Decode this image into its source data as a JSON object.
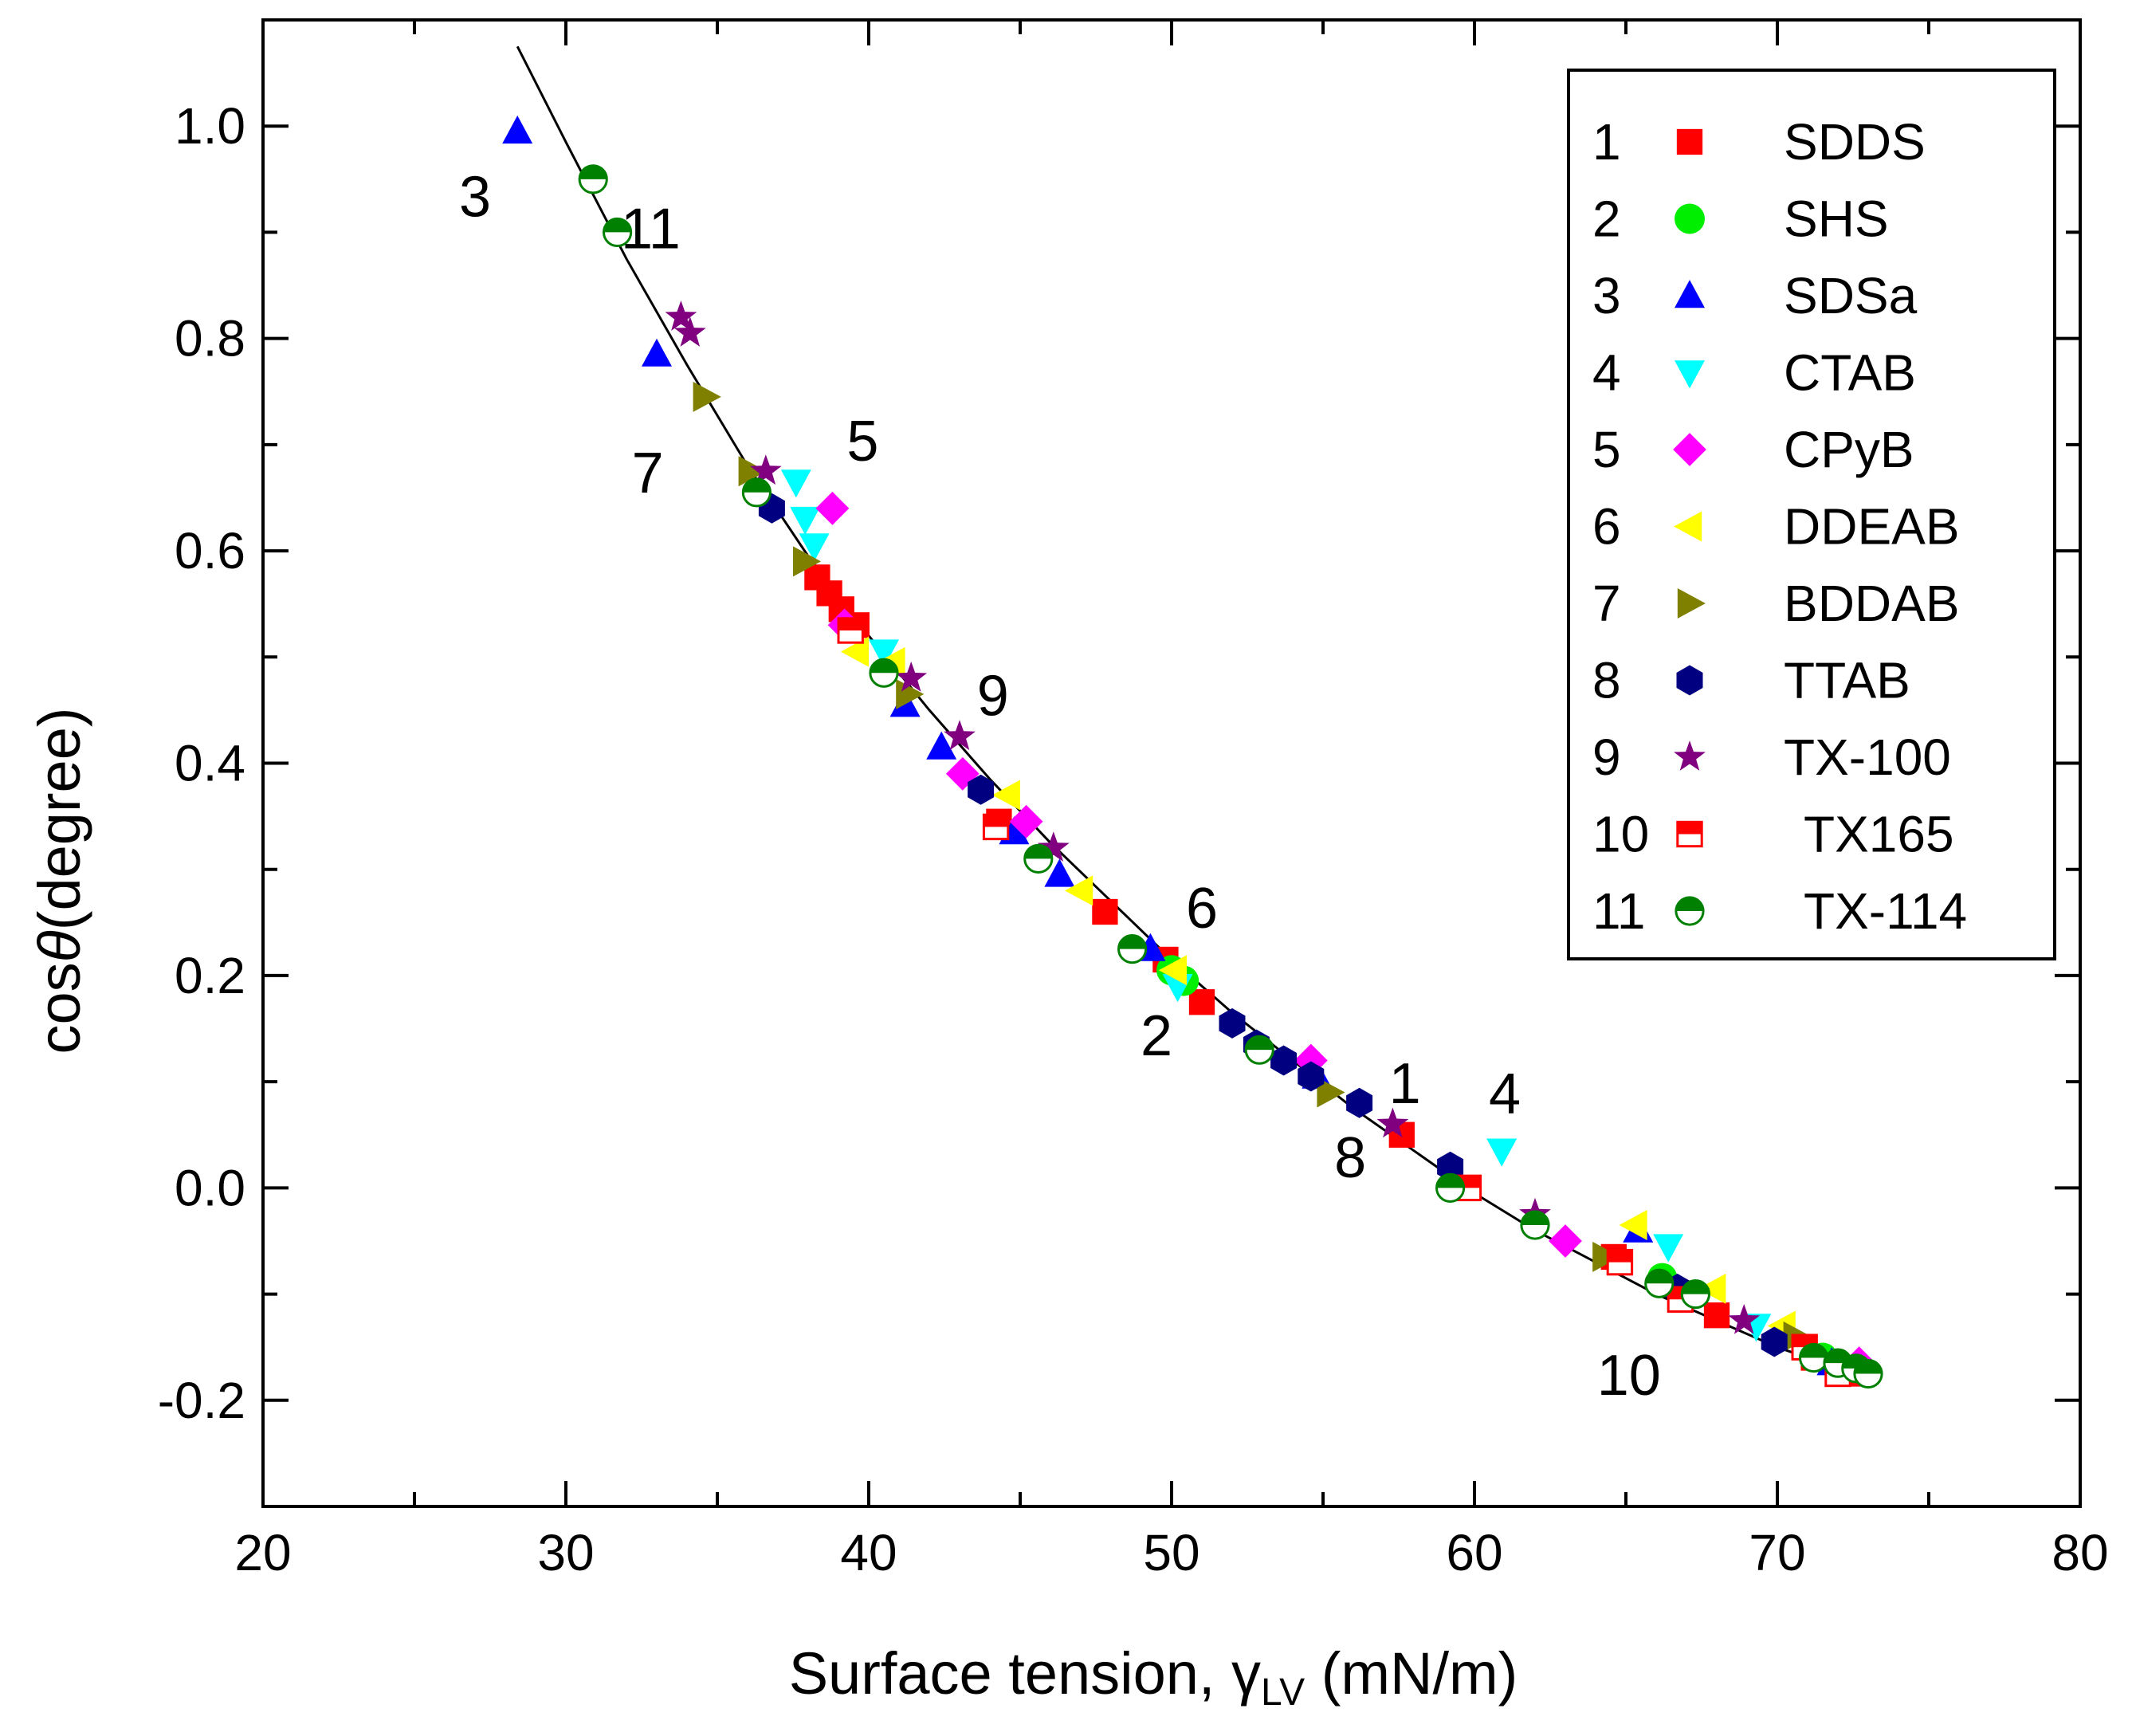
{
  "chart_data": {
    "type": "scatter",
    "title": "",
    "xlabel": {
      "main": "Surface tension, ",
      "symbol": "γ",
      "subscript": "LV",
      "unit": " (mN/m)"
    },
    "ylabel": {
      "prefix": "cos",
      "symbol": "θ",
      "suffix": "(degree)"
    },
    "xlim": [
      20,
      80
    ],
    "ylim": [
      -0.3,
      1.1
    ],
    "x_ticks": [
      20,
      30,
      40,
      50,
      60,
      70,
      80
    ],
    "x_tick_labels": [
      "20",
      "30",
      "40",
      "50",
      "60",
      "70",
      "80"
    ],
    "x_minor_ticks": [
      25,
      35,
      45,
      55,
      65,
      75
    ],
    "y_ticks": [
      -0.2,
      0.0,
      0.2,
      0.4,
      0.6,
      0.8,
      1.0
    ],
    "y_tick_labels": [
      "-0.2",
      "0.0",
      "0.2",
      "0.4",
      "0.6",
      "0.8",
      "1.0"
    ],
    "y_minor_ticks": [
      -0.1,
      0.1,
      0.3,
      0.5,
      0.7,
      0.9
    ],
    "legend_placement": "top-right",
    "fit_line": {
      "x": [
        28.4,
        30,
        32,
        34,
        36,
        38,
        40,
        42,
        44,
        46,
        48,
        50,
        52,
        54,
        56,
        58,
        60,
        62,
        64,
        66,
        68,
        70,
        72,
        73
      ],
      "y": [
        1.075,
        0.985,
        0.875,
        0.775,
        0.68,
        0.595,
        0.52,
        0.45,
        0.385,
        0.325,
        0.27,
        0.215,
        0.165,
        0.12,
        0.075,
        0.035,
        -0.005,
        -0.04,
        -0.07,
        -0.1,
        -0.125,
        -0.15,
        -0.17,
        -0.18
      ]
    },
    "series": [
      {
        "num": "1",
        "name": "SDDS",
        "marker": "square",
        "color": "#ff0000",
        "x": [
          38.3,
          38.7,
          39.1,
          39.6,
          44.3,
          47.8,
          49.8,
          51.0,
          57.6,
          64.6,
          68.0,
          71.2,
          72.4
        ],
        "y": [
          0.575,
          0.56,
          0.545,
          0.53,
          0.345,
          0.26,
          0.215,
          0.175,
          0.05,
          -0.065,
          -0.12,
          -0.16,
          -0.175
        ]
      },
      {
        "num": "2",
        "name": "SHS",
        "marker": "circle",
        "color": "#00ee00",
        "x": [
          50.0,
          50.4,
          66.2,
          71.5
        ],
        "y": [
          0.205,
          0.195,
          -0.085,
          -0.16
        ]
      },
      {
        "num": "3",
        "name": "SDSa",
        "marker": "triangle-up",
        "color": "#0000ff",
        "x": [
          28.4,
          33.0,
          41.2,
          42.4,
          44.8,
          46.3,
          49.3,
          54.8,
          65.4,
          71.8
        ],
        "y": [
          0.995,
          0.785,
          0.455,
          0.415,
          0.335,
          0.295,
          0.225,
          0.105,
          -0.04,
          -0.165
        ]
      },
      {
        "num": "4",
        "name": "CTAB",
        "marker": "triangle-down",
        "color": "#00ffff",
        "x": [
          37.6,
          37.9,
          38.2,
          40.5,
          50.2,
          60.9,
          66.4,
          69.3
        ],
        "y": [
          0.665,
          0.63,
          0.605,
          0.505,
          0.19,
          0.035,
          -0.055,
          -0.13
        ]
      },
      {
        "num": "5",
        "name": "CPyB",
        "marker": "diamond",
        "color": "#ff00ff",
        "x": [
          38.8,
          39.2,
          43.1,
          45.2,
          54.6,
          63.0,
          72.7
        ],
        "y": [
          0.64,
          0.53,
          0.39,
          0.345,
          0.12,
          -0.05,
          -0.165
        ]
      },
      {
        "num": "6",
        "name": "DDEAB",
        "marker": "triangle-left",
        "color": "#ffff00",
        "x": [
          39.6,
          40.8,
          44.6,
          47.0,
          50.1,
          65.3,
          67.9,
          70.2
        ],
        "y": [
          0.505,
          0.495,
          0.37,
          0.28,
          0.205,
          -0.035,
          -0.095,
          -0.13
        ]
      },
      {
        "num": "7",
        "name": "BDDAB",
        "marker": "triangle-right",
        "color": "#808000",
        "x": [
          34.6,
          36.1,
          37.9,
          41.3,
          55.2,
          64.3,
          70.6
        ],
        "y": [
          0.745,
          0.675,
          0.59,
          0.465,
          0.09,
          -0.065,
          -0.14
        ]
      },
      {
        "num": "8",
        "name": "TTAB",
        "marker": "hexagon",
        "color": "#000080",
        "x": [
          36.8,
          43.7,
          52.0,
          52.8,
          53.7,
          54.6,
          56.2,
          59.2,
          66.7,
          69.9
        ],
        "y": [
          0.64,
          0.375,
          0.155,
          0.135,
          0.12,
          0.105,
          0.08,
          0.02,
          -0.095,
          -0.145
        ]
      },
      {
        "num": "9",
        "name": "TX-100",
        "marker": "star",
        "color": "#800080",
        "x": [
          33.8,
          34.1,
          36.6,
          41.4,
          43.0,
          46.1,
          57.3,
          62.0,
          68.9
        ],
        "y": [
          0.82,
          0.805,
          0.675,
          0.48,
          0.425,
          0.32,
          0.06,
          -0.025,
          -0.125
        ]
      },
      {
        "num": "10",
        "name": "TX165",
        "marker": "square-half",
        "color": "#ff0000",
        "x": [
          39.4,
          44.2,
          59.8,
          64.8,
          66.8,
          70.9,
          72.0
        ],
        "y": [
          0.525,
          0.34,
          0.0,
          -0.07,
          -0.105,
          -0.15,
          -0.175
        ]
      },
      {
        "num": "11",
        "name": "TX-114",
        "marker": "circle-half",
        "color": "#008000",
        "x": [
          30.9,
          31.7,
          36.3,
          40.5,
          45.6,
          48.7,
          52.9,
          59.2,
          62.0,
          66.1,
          67.3,
          71.2,
          72.0,
          72.6,
          73.0
        ],
        "y": [
          0.95,
          0.9,
          0.655,
          0.485,
          0.31,
          0.225,
          0.13,
          0.0,
          -0.035,
          -0.09,
          -0.1,
          -0.16,
          -0.165,
          -0.17,
          -0.175
        ]
      }
    ],
    "annotations": [
      {
        "text": "3",
        "x": 27.0,
        "y": 0.915
      },
      {
        "text": "11",
        "x": 32.8,
        "y": 0.885
      },
      {
        "text": "7",
        "x": 32.7,
        "y": 0.655
      },
      {
        "text": "5",
        "x": 39.8,
        "y": 0.685
      },
      {
        "text": "9",
        "x": 44.1,
        "y": 0.445
      },
      {
        "text": "6",
        "x": 51.0,
        "y": 0.245
      },
      {
        "text": "2",
        "x": 49.5,
        "y": 0.125
      },
      {
        "text": "1",
        "x": 57.7,
        "y": 0.08
      },
      {
        "text": "4",
        "x": 61.0,
        "y": 0.07
      },
      {
        "text": "8",
        "x": 55.9,
        "y": 0.01
      },
      {
        "text": "10",
        "x": 65.1,
        "y": -0.195
      }
    ]
  }
}
